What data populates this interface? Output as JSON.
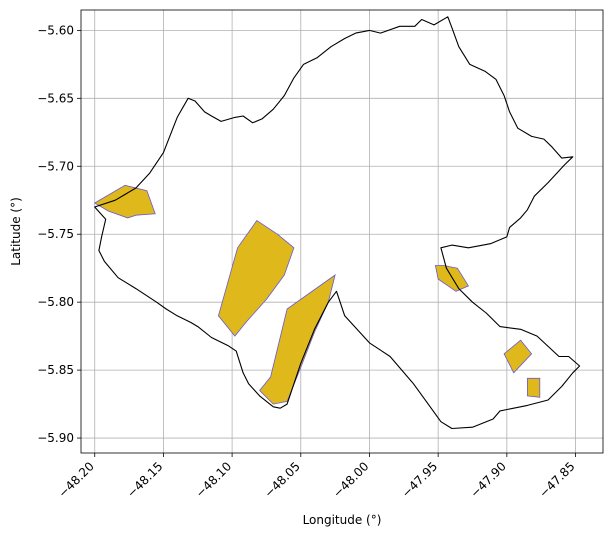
{
  "chart_data": {
    "type": "map",
    "xlabel": "Longitude (°)",
    "ylabel": "Latitude (°)",
    "xlim": [
      -48.21,
      -47.83
    ],
    "ylim": [
      -5.911,
      -5.585
    ],
    "grid": true,
    "x_ticks": [
      -48.2,
      -48.15,
      -48.1,
      -48.05,
      -48.0,
      -47.95,
      -47.9,
      -47.85
    ],
    "x_tick_labels": [
      "−48.20",
      "−48.15",
      "−48.10",
      "−48.05",
      "−48.00",
      "−47.95",
      "−47.90",
      "−47.85"
    ],
    "y_ticks": [
      -5.6,
      -5.65,
      -5.7,
      -5.75,
      -5.8,
      -5.85,
      -5.9
    ],
    "y_tick_labels": [
      "−5.60",
      "−5.65",
      "−5.70",
      "−5.75",
      "−5.80",
      "−5.85",
      "−5.90"
    ],
    "boundary_color": "#000000",
    "area_fill_color": "#dfb91c",
    "area_edge_color": "#6a5acd",
    "boundary": [
      [
        -48.2,
        -5.73
      ],
      [
        -48.192,
        -5.739
      ],
      [
        -48.195,
        -5.752
      ],
      [
        -48.197,
        -5.762
      ],
      [
        -48.193,
        -5.77
      ],
      [
        -48.183,
        -5.782
      ],
      [
        -48.17,
        -5.79
      ],
      [
        -48.155,
        -5.8
      ],
      [
        -48.148,
        -5.805
      ],
      [
        -48.14,
        -5.81
      ],
      [
        -48.13,
        -5.815
      ],
      [
        -48.125,
        -5.818
      ],
      [
        -48.115,
        -5.826
      ],
      [
        -48.103,
        -5.832
      ],
      [
        -48.097,
        -5.836
      ],
      [
        -48.092,
        -5.852
      ],
      [
        -48.088,
        -5.86
      ],
      [
        -48.08,
        -5.869
      ],
      [
        -48.07,
        -5.877
      ],
      [
        -48.065,
        -5.878
      ],
      [
        -48.06,
        -5.875
      ],
      [
        -48.05,
        -5.845
      ],
      [
        -48.04,
        -5.82
      ],
      [
        -48.03,
        -5.8
      ],
      [
        -48.024,
        -5.792
      ],
      [
        -48.018,
        -5.81
      ],
      [
        -48.0,
        -5.83
      ],
      [
        -47.985,
        -5.84
      ],
      [
        -47.968,
        -5.86
      ],
      [
        -47.958,
        -5.874
      ],
      [
        -47.948,
        -5.888
      ],
      [
        -47.94,
        -5.893
      ],
      [
        -47.925,
        -5.892
      ],
      [
        -47.91,
        -5.886
      ],
      [
        -47.905,
        -5.88
      ],
      [
        -47.895,
        -5.878
      ],
      [
        -47.885,
        -5.876
      ],
      [
        -47.87,
        -5.872
      ],
      [
        -47.86,
        -5.862
      ],
      [
        -47.852,
        -5.852
      ],
      [
        -47.847,
        -5.847
      ],
      [
        -47.855,
        -5.84
      ],
      [
        -47.862,
        -5.84
      ],
      [
        -47.878,
        -5.825
      ],
      [
        -47.89,
        -5.82
      ],
      [
        -47.905,
        -5.818
      ],
      [
        -47.915,
        -5.808
      ],
      [
        -47.925,
        -5.8
      ],
      [
        -47.935,
        -5.79
      ],
      [
        -47.944,
        -5.775
      ],
      [
        -47.948,
        -5.76
      ],
      [
        -47.94,
        -5.758
      ],
      [
        -47.928,
        -5.76
      ],
      [
        -47.912,
        -5.757
      ],
      [
        -47.9,
        -5.752
      ],
      [
        -47.898,
        -5.745
      ],
      [
        -47.89,
        -5.738
      ],
      [
        -47.885,
        -5.732
      ],
      [
        -47.88,
        -5.722
      ],
      [
        -47.87,
        -5.712
      ],
      [
        -47.858,
        -5.699
      ],
      [
        -47.852,
        -5.693
      ],
      [
        -47.86,
        -5.694
      ],
      [
        -47.867,
        -5.686
      ],
      [
        -47.873,
        -5.68
      ],
      [
        -47.882,
        -5.678
      ],
      [
        -47.892,
        -5.672
      ],
      [
        -47.898,
        -5.66
      ],
      [
        -47.902,
        -5.648
      ],
      [
        -47.908,
        -5.636
      ],
      [
        -47.916,
        -5.63
      ],
      [
        -47.927,
        -5.625
      ],
      [
        -47.935,
        -5.612
      ],
      [
        -47.94,
        -5.598
      ],
      [
        -47.943,
        -5.59
      ],
      [
        -47.953,
        -5.596
      ],
      [
        -47.962,
        -5.592
      ],
      [
        -47.967,
        -5.597
      ],
      [
        -47.978,
        -5.597
      ],
      [
        -47.992,
        -5.602
      ],
      [
        -48.0,
        -5.6
      ],
      [
        -48.01,
        -5.602
      ],
      [
        -48.018,
        -5.606
      ],
      [
        -48.028,
        -5.612
      ],
      [
        -48.038,
        -5.62
      ],
      [
        -48.048,
        -5.625
      ],
      [
        -48.055,
        -5.635
      ],
      [
        -48.062,
        -5.648
      ],
      [
        -48.07,
        -5.658
      ],
      [
        -48.078,
        -5.665
      ],
      [
        -48.085,
        -5.668
      ],
      [
        -48.092,
        -5.663
      ],
      [
        -48.098,
        -5.664
      ],
      [
        -48.108,
        -5.667
      ],
      [
        -48.115,
        -5.663
      ],
      [
        -48.12,
        -5.66
      ],
      [
        -48.127,
        -5.652
      ],
      [
        -48.132,
        -5.65
      ],
      [
        -48.14,
        -5.664
      ],
      [
        -48.15,
        -5.69
      ],
      [
        -48.16,
        -5.705
      ],
      [
        -48.17,
        -5.716
      ],
      [
        -48.185,
        -5.725
      ],
      [
        -48.2,
        -5.73
      ]
    ],
    "areas": [
      [
        [
          -48.2,
          -5.727
        ],
        [
          -48.178,
          -5.714
        ],
        [
          -48.162,
          -5.718
        ],
        [
          -48.156,
          -5.735
        ],
        [
          -48.17,
          -5.736
        ],
        [
          -48.176,
          -5.738
        ],
        [
          -48.19,
          -5.733
        ],
        [
          -48.2,
          -5.727
        ]
      ],
      [
        [
          -48.11,
          -5.81
        ],
        [
          -48.096,
          -5.76
        ],
        [
          -48.082,
          -5.74
        ],
        [
          -48.067,
          -5.75
        ],
        [
          -48.055,
          -5.76
        ],
        [
          -48.062,
          -5.78
        ],
        [
          -48.075,
          -5.798
        ],
        [
          -48.09,
          -5.815
        ],
        [
          -48.098,
          -5.825
        ],
        [
          -48.11,
          -5.81
        ]
      ],
      [
        [
          -48.08,
          -5.865
        ],
        [
          -48.072,
          -5.855
        ],
        [
          -48.06,
          -5.805
        ],
        [
          -48.025,
          -5.78
        ],
        [
          -48.03,
          -5.8
        ],
        [
          -48.04,
          -5.822
        ],
        [
          -48.05,
          -5.848
        ],
        [
          -48.06,
          -5.873
        ],
        [
          -48.07,
          -5.875
        ],
        [
          -48.08,
          -5.865
        ]
      ],
      [
        [
          -47.952,
          -5.773
        ],
        [
          -47.946,
          -5.773
        ],
        [
          -47.936,
          -5.775
        ],
        [
          -47.928,
          -5.788
        ],
        [
          -47.937,
          -5.792
        ],
        [
          -47.95,
          -5.783
        ],
        [
          -47.952,
          -5.773
        ]
      ],
      [
        [
          -47.902,
          -5.838
        ],
        [
          -47.89,
          -5.828
        ],
        [
          -47.882,
          -5.838
        ],
        [
          -47.895,
          -5.852
        ],
        [
          -47.902,
          -5.838
        ]
      ],
      [
        [
          -47.885,
          -5.856
        ],
        [
          -47.876,
          -5.856
        ],
        [
          -47.876,
          -5.87
        ],
        [
          -47.885,
          -5.869
        ],
        [
          -47.885,
          -5.856
        ]
      ]
    ]
  }
}
